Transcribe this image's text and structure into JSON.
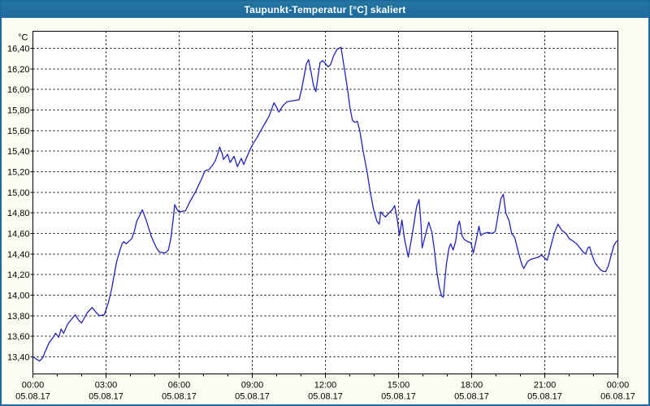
{
  "window": {
    "title": "Taupunkt-Temperatur [°C] skaliert"
  },
  "colors": {
    "titlebar": "#1d6a9e",
    "window_border": "#1d6a9e",
    "background": "#fbfcf1",
    "plot_background": "#ffffff",
    "grid": "#000000",
    "axis": "#000000",
    "line": "#2222c0",
    "title_text": "#ffffff",
    "label_text": "#000000"
  },
  "chart_data": {
    "type": "line",
    "title": "Taupunkt-Temperatur [°C] skaliert",
    "legend": "none",
    "grid": {
      "dashed": true,
      "horizontal": true,
      "vertical": true
    },
    "y_axis": {
      "unit_label": "°C",
      "tick_labels": [
        "16,40",
        "16,20",
        "16,00",
        "15,80",
        "15,60",
        "15,40",
        "15,20",
        "15,00",
        "14,80",
        "14,60",
        "14,40",
        "14,20",
        "14,00",
        "13,80",
        "13,60",
        "13,40"
      ],
      "tick_values": [
        16.4,
        16.2,
        16.0,
        15.8,
        15.6,
        15.4,
        15.2,
        15.0,
        14.8,
        14.6,
        14.4,
        14.2,
        14.0,
        13.8,
        13.6,
        13.4
      ],
      "max": 16.4,
      "min": 13.4,
      "step": 0.2
    },
    "x_axis": {
      "hours_total": 24,
      "major_step_hours": 3,
      "minor_step_hours": 1,
      "tick_times": [
        "00:00",
        "03:00",
        "06:00",
        "09:00",
        "12:00",
        "15:00",
        "18:00",
        "21:00",
        "00:00"
      ],
      "tick_dates": [
        "05.08.17",
        "05.08.17",
        "05.08.17",
        "05.08.17",
        "05.08.17",
        "05.08.17",
        "05.08.17",
        "05.08.17",
        "06.08.17"
      ]
    },
    "series": [
      {
        "name": "Taupunkt-Temperatur",
        "color": "#2222c0",
        "points_hours_value": [
          [
            0.0,
            13.4
          ],
          [
            0.13,
            13.38
          ],
          [
            0.27,
            13.36
          ],
          [
            0.4,
            13.39
          ],
          [
            0.5,
            13.45
          ],
          [
            0.67,
            13.54
          ],
          [
            0.83,
            13.59
          ],
          [
            0.93,
            13.63
          ],
          [
            1.06,
            13.59
          ],
          [
            1.16,
            13.67
          ],
          [
            1.26,
            13.63
          ],
          [
            1.43,
            13.72
          ],
          [
            1.6,
            13.77
          ],
          [
            1.73,
            13.81
          ],
          [
            1.9,
            13.75
          ],
          [
            2.0,
            13.73
          ],
          [
            2.23,
            13.83
          ],
          [
            2.43,
            13.88
          ],
          [
            2.6,
            13.83
          ],
          [
            2.73,
            13.8
          ],
          [
            2.93,
            13.81
          ],
          [
            3.1,
            13.93
          ],
          [
            3.23,
            14.06
          ],
          [
            3.33,
            14.19
          ],
          [
            3.43,
            14.32
          ],
          [
            3.56,
            14.43
          ],
          [
            3.66,
            14.5
          ],
          [
            3.73,
            14.52
          ],
          [
            3.83,
            14.5
          ],
          [
            4.06,
            14.55
          ],
          [
            4.16,
            14.62
          ],
          [
            4.26,
            14.72
          ],
          [
            4.39,
            14.78
          ],
          [
            4.49,
            14.83
          ],
          [
            4.66,
            14.72
          ],
          [
            4.86,
            14.57
          ],
          [
            4.99,
            14.5
          ],
          [
            5.09,
            14.45
          ],
          [
            5.19,
            14.42
          ],
          [
            5.43,
            14.41
          ],
          [
            5.56,
            14.44
          ],
          [
            5.66,
            14.55
          ],
          [
            5.76,
            14.75
          ],
          [
            5.82,
            14.88
          ],
          [
            5.92,
            14.83
          ],
          [
            5.99,
            14.81
          ],
          [
            6.26,
            14.82
          ],
          [
            6.42,
            14.9
          ],
          [
            6.66,
            15.0
          ],
          [
            6.82,
            15.08
          ],
          [
            6.92,
            15.13
          ],
          [
            7.06,
            15.21
          ],
          [
            7.22,
            15.22
          ],
          [
            7.39,
            15.27
          ],
          [
            7.49,
            15.31
          ],
          [
            7.59,
            15.38
          ],
          [
            7.66,
            15.44
          ],
          [
            7.76,
            15.38
          ],
          [
            7.82,
            15.32
          ],
          [
            7.99,
            15.37
          ],
          [
            8.09,
            15.29
          ],
          [
            8.25,
            15.35
          ],
          [
            8.39,
            15.25
          ],
          [
            8.55,
            15.33
          ],
          [
            8.65,
            15.27
          ],
          [
            8.79,
            15.35
          ],
          [
            8.92,
            15.42
          ],
          [
            9.05,
            15.48
          ],
          [
            9.19,
            15.53
          ],
          [
            9.35,
            15.6
          ],
          [
            9.52,
            15.67
          ],
          [
            9.69,
            15.74
          ],
          [
            9.89,
            15.87
          ],
          [
            9.99,
            15.83
          ],
          [
            10.09,
            15.78
          ],
          [
            10.25,
            15.84
          ],
          [
            10.42,
            15.88
          ],
          [
            10.65,
            15.89
          ],
          [
            10.92,
            15.9
          ],
          [
            11.02,
            16.0
          ],
          [
            11.12,
            16.12
          ],
          [
            11.22,
            16.25
          ],
          [
            11.31,
            16.29
          ],
          [
            11.41,
            16.17
          ],
          [
            11.51,
            16.04
          ],
          [
            11.61,
            15.98
          ],
          [
            11.68,
            16.1
          ],
          [
            11.78,
            16.26
          ],
          [
            11.88,
            16.28
          ],
          [
            12.01,
            16.25
          ],
          [
            12.11,
            16.22
          ],
          [
            12.21,
            16.24
          ],
          [
            12.34,
            16.33
          ],
          [
            12.48,
            16.39
          ],
          [
            12.64,
            16.41
          ],
          [
            12.78,
            16.2
          ],
          [
            12.91,
            16.0
          ],
          [
            13.01,
            15.82
          ],
          [
            13.11,
            15.7
          ],
          [
            13.21,
            15.68
          ],
          [
            13.31,
            15.69
          ],
          [
            13.41,
            15.6
          ],
          [
            13.54,
            15.41
          ],
          [
            13.71,
            15.2
          ],
          [
            13.84,
            15.0
          ],
          [
            13.98,
            14.83
          ],
          [
            14.11,
            14.72
          ],
          [
            14.21,
            14.69
          ],
          [
            14.27,
            14.81
          ],
          [
            14.37,
            14.78
          ],
          [
            14.47,
            14.76
          ],
          [
            14.61,
            14.8
          ],
          [
            14.74,
            14.83
          ],
          [
            14.84,
            14.87
          ],
          [
            14.94,
            14.75
          ],
          [
            15.04,
            14.58
          ],
          [
            15.14,
            14.73
          ],
          [
            15.24,
            14.55
          ],
          [
            15.4,
            14.37
          ],
          [
            15.57,
            14.6
          ],
          [
            15.74,
            14.86
          ],
          [
            15.84,
            14.93
          ],
          [
            15.92,
            14.7
          ],
          [
            15.97,
            14.46
          ],
          [
            16.1,
            14.58
          ],
          [
            16.24,
            14.71
          ],
          [
            16.37,
            14.61
          ],
          [
            16.47,
            14.44
          ],
          [
            16.57,
            14.23
          ],
          [
            16.67,
            14.08
          ],
          [
            16.77,
            13.99
          ],
          [
            16.84,
            13.98
          ],
          [
            16.9,
            14.15
          ],
          [
            16.97,
            14.31
          ],
          [
            17.07,
            14.46
          ],
          [
            17.14,
            14.5
          ],
          [
            17.24,
            14.44
          ],
          [
            17.34,
            14.52
          ],
          [
            17.44,
            14.68
          ],
          [
            17.5,
            14.72
          ],
          [
            17.6,
            14.58
          ],
          [
            17.7,
            14.54
          ],
          [
            17.84,
            14.52
          ],
          [
            17.97,
            14.51
          ],
          [
            18.07,
            14.41
          ],
          [
            18.2,
            14.55
          ],
          [
            18.3,
            14.67
          ],
          [
            18.37,
            14.58
          ],
          [
            18.5,
            14.6
          ],
          [
            18.67,
            14.61
          ],
          [
            18.84,
            14.6
          ],
          [
            18.97,
            14.62
          ],
          [
            19.07,
            14.76
          ],
          [
            19.2,
            14.94
          ],
          [
            19.3,
            14.98
          ],
          [
            19.4,
            14.8
          ],
          [
            19.54,
            14.72
          ],
          [
            19.64,
            14.6
          ],
          [
            19.77,
            14.56
          ],
          [
            19.87,
            14.46
          ],
          [
            19.97,
            14.37
          ],
          [
            20.07,
            14.29
          ],
          [
            20.14,
            14.26
          ],
          [
            20.3,
            14.33
          ],
          [
            20.44,
            14.35
          ],
          [
            20.6,
            14.36
          ],
          [
            20.74,
            14.37
          ],
          [
            20.87,
            14.39
          ],
          [
            21.0,
            14.36
          ],
          [
            21.1,
            14.34
          ],
          [
            21.24,
            14.47
          ],
          [
            21.4,
            14.61
          ],
          [
            21.54,
            14.69
          ],
          [
            21.7,
            14.63
          ],
          [
            21.87,
            14.6
          ],
          [
            22.0,
            14.55
          ],
          [
            22.14,
            14.53
          ],
          [
            22.3,
            14.5
          ],
          [
            22.44,
            14.46
          ],
          [
            22.57,
            14.42
          ],
          [
            22.67,
            14.4
          ],
          [
            22.77,
            14.46
          ],
          [
            22.84,
            14.47
          ],
          [
            22.94,
            14.39
          ],
          [
            23.07,
            14.31
          ],
          [
            23.17,
            14.28
          ],
          [
            23.27,
            14.25
          ],
          [
            23.4,
            14.23
          ],
          [
            23.5,
            14.23
          ],
          [
            23.6,
            14.28
          ],
          [
            23.73,
            14.39
          ],
          [
            23.83,
            14.48
          ],
          [
            23.93,
            14.52
          ],
          [
            24.0,
            14.53
          ]
        ]
      }
    ]
  }
}
